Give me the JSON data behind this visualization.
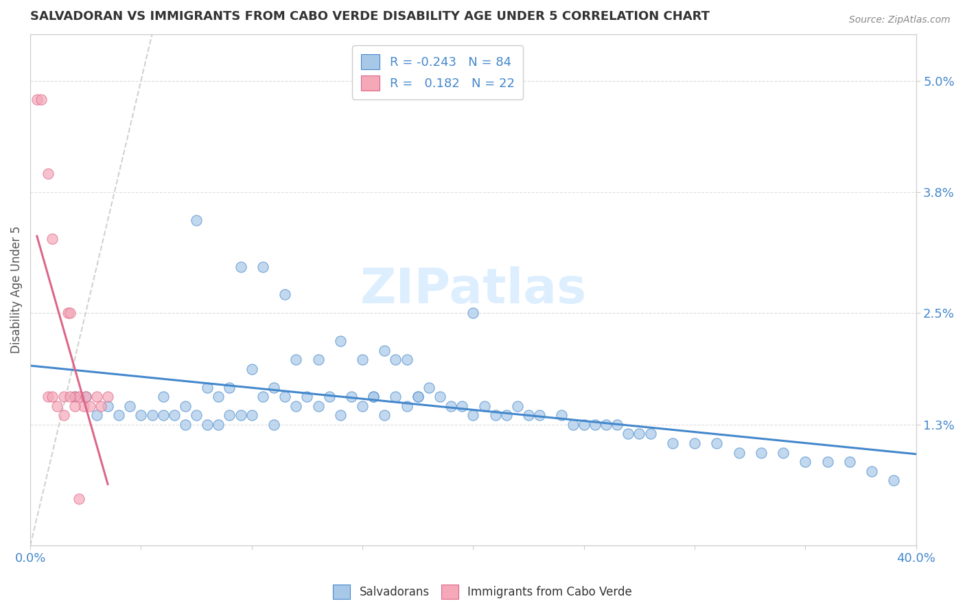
{
  "title": "SALVADORAN VS IMMIGRANTS FROM CABO VERDE DISABILITY AGE UNDER 5 CORRELATION CHART",
  "source": "Source: ZipAtlas.com",
  "ylabel": "Disability Age Under 5",
  "xlim": [
    0.0,
    0.4
  ],
  "ylim": [
    0.0,
    0.055
  ],
  "xticks": [
    0.0,
    0.05,
    0.1,
    0.15,
    0.2,
    0.25,
    0.3,
    0.35,
    0.4
  ],
  "xticklabels": [
    "0.0%",
    "",
    "",
    "",
    "",
    "",
    "",
    "",
    "40.0%"
  ],
  "yticks_right": [
    0.013,
    0.025,
    0.038,
    0.05
  ],
  "yticklabels_right": [
    "1.3%",
    "2.5%",
    "3.8%",
    "5.0%"
  ],
  "blue_color": "#A8C8E8",
  "pink_color": "#F4A8B8",
  "blue_line_color": "#4488CC",
  "pink_line_color": "#DD6688",
  "diag_color": "#CCCCCC",
  "legend_R1": "-0.243",
  "legend_N1": "84",
  "legend_R2": "0.182",
  "legend_N2": "22",
  "blue_scatter_x": [
    0.02,
    0.025,
    0.03,
    0.035,
    0.04,
    0.045,
    0.05,
    0.055,
    0.06,
    0.06,
    0.065,
    0.07,
    0.07,
    0.075,
    0.08,
    0.08,
    0.085,
    0.085,
    0.09,
    0.09,
    0.095,
    0.1,
    0.1,
    0.105,
    0.11,
    0.11,
    0.115,
    0.12,
    0.12,
    0.125,
    0.13,
    0.13,
    0.135,
    0.14,
    0.14,
    0.145,
    0.15,
    0.15,
    0.155,
    0.16,
    0.16,
    0.165,
    0.165,
    0.17,
    0.17,
    0.175,
    0.18,
    0.185,
    0.19,
    0.195,
    0.2,
    0.2,
    0.205,
    0.21,
    0.215,
    0.22,
    0.225,
    0.23,
    0.24,
    0.245,
    0.25,
    0.255,
    0.26,
    0.265,
    0.27,
    0.275,
    0.28,
    0.29,
    0.3,
    0.31,
    0.32,
    0.33,
    0.34,
    0.35,
    0.36,
    0.37,
    0.38,
    0.39,
    0.075,
    0.095,
    0.105,
    0.115,
    0.155,
    0.175
  ],
  "blue_scatter_y": [
    0.016,
    0.016,
    0.014,
    0.015,
    0.014,
    0.015,
    0.014,
    0.014,
    0.016,
    0.014,
    0.014,
    0.015,
    0.013,
    0.014,
    0.017,
    0.013,
    0.016,
    0.013,
    0.017,
    0.014,
    0.014,
    0.019,
    0.014,
    0.016,
    0.017,
    0.013,
    0.016,
    0.02,
    0.015,
    0.016,
    0.02,
    0.015,
    0.016,
    0.022,
    0.014,
    0.016,
    0.02,
    0.015,
    0.016,
    0.021,
    0.014,
    0.02,
    0.016,
    0.02,
    0.015,
    0.016,
    0.017,
    0.016,
    0.015,
    0.015,
    0.025,
    0.014,
    0.015,
    0.014,
    0.014,
    0.015,
    0.014,
    0.014,
    0.014,
    0.013,
    0.013,
    0.013,
    0.013,
    0.013,
    0.012,
    0.012,
    0.012,
    0.011,
    0.011,
    0.011,
    0.01,
    0.01,
    0.01,
    0.009,
    0.009,
    0.009,
    0.008,
    0.007,
    0.035,
    0.03,
    0.03,
    0.027,
    0.016,
    0.016
  ],
  "pink_scatter_x": [
    0.003,
    0.005,
    0.008,
    0.01,
    0.012,
    0.015,
    0.017,
    0.018,
    0.02,
    0.022,
    0.024,
    0.025,
    0.027,
    0.03,
    0.032,
    0.035,
    0.008,
    0.01,
    0.015,
    0.018,
    0.02,
    0.022
  ],
  "pink_scatter_y": [
    0.048,
    0.048,
    0.04,
    0.033,
    0.015,
    0.016,
    0.025,
    0.025,
    0.016,
    0.016,
    0.015,
    0.016,
    0.015,
    0.016,
    0.015,
    0.016,
    0.016,
    0.016,
    0.014,
    0.016,
    0.015,
    0.005
  ],
  "background_color": "#FFFFFF",
  "grid_color": "#DDDDDD",
  "watermark_text": "ZIPatlas",
  "watermark_color": "#DDEEFF"
}
